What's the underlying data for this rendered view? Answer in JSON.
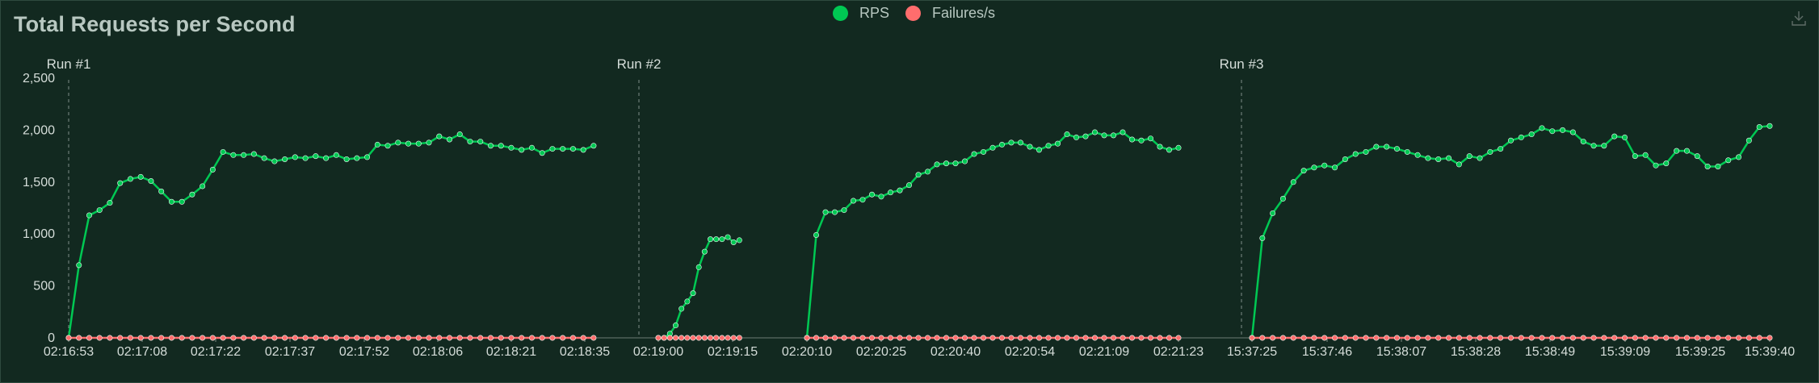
{
  "header": {
    "title": "Total Requests per Second"
  },
  "legend": [
    {
      "name": "RPS",
      "color": "#00c853"
    },
    {
      "name": "Failures/s",
      "color": "#ff6d6d"
    }
  ],
  "icons": {
    "download": "download-icon"
  },
  "colors": {
    "background": "#122920",
    "rps": "#00c853",
    "failures": "#ff6d6d",
    "axis_text": "#d5ddd9",
    "marker_line": "#7f8d87"
  },
  "chart_data": {
    "type": "line",
    "title": "Total Requests per Second",
    "xlabel": "",
    "ylabel": "",
    "ylim": [
      0,
      2500
    ],
    "y_ticks": [
      "0",
      "500",
      "1,000",
      "1,500",
      "2,000",
      "2,500"
    ],
    "x_ticks": [
      "02:16:53",
      "02:17:08",
      "02:17:22",
      "02:17:37",
      "02:17:52",
      "02:18:06",
      "02:18:21",
      "02:18:35",
      "02:19:00",
      "02:19:15",
      "02:20:10",
      "02:20:25",
      "02:20:40",
      "02:20:54",
      "02:21:09",
      "02:21:23",
      "15:37:25",
      "15:37:46",
      "15:38:07",
      "15:38:28",
      "15:38:49",
      "15:39:09",
      "15:39:25",
      "15:39:40"
    ],
    "grid": false,
    "legend_position": "top-center",
    "run_markers": [
      "Run #1",
      "Run #2",
      "Run #3"
    ],
    "series": [
      {
        "name": "RPS",
        "segments": [
          {
            "start": "02:16:53",
            "end": "02:18:38",
            "values": [
              0,
              700,
              1180,
              1230,
              1300,
              1490,
              1530,
              1550,
              1510,
              1410,
              1310,
              1310,
              1380,
              1460,
              1620,
              1790,
              1760,
              1760,
              1770,
              1730,
              1700,
              1720,
              1740,
              1730,
              1750,
              1730,
              1760,
              1720,
              1730,
              1740,
              1860,
              1850,
              1880,
              1870,
              1870,
              1880,
              1940,
              1910,
              1960,
              1890,
              1890,
              1850,
              1850,
              1830,
              1810,
              1830,
              1780,
              1820,
              1820,
              1820,
              1810,
              1850
            ]
          },
          {
            "start": "02:19:00",
            "end": "02:19:20",
            "values": [
              0,
              0,
              40,
              120,
              280,
              350,
              430,
              680,
              830,
              950,
              950,
              950,
              970,
              920,
              940
            ]
          },
          {
            "start": "02:20:10",
            "end": "02:21:28",
            "values": [
              0,
              990,
              1210,
              1210,
              1230,
              1320,
              1330,
              1380,
              1360,
              1400,
              1420,
              1470,
              1570,
              1600,
              1670,
              1680,
              1680,
              1700,
              1770,
              1790,
              1830,
              1860,
              1880,
              1880,
              1840,
              1810,
              1850,
              1870,
              1960,
              1930,
              1940,
              1980,
              1950,
              1950,
              1980,
              1910,
              1900,
              1920,
              1840,
              1810,
              1830
            ]
          },
          {
            "start": "15:37:25",
            "end": "15:39:40",
            "values": [
              0,
              960,
              1200,
              1340,
              1500,
              1610,
              1640,
              1660,
              1640,
              1720,
              1770,
              1790,
              1840,
              1840,
              1820,
              1790,
              1760,
              1730,
              1720,
              1730,
              1670,
              1750,
              1730,
              1790,
              1820,
              1900,
              1930,
              1960,
              2020,
              1990,
              2000,
              1980,
              1890,
              1850,
              1850,
              1940,
              1930,
              1750,
              1760,
              1660,
              1680,
              1800,
              1800,
              1750,
              1650,
              1650,
              1710,
              1740,
              1900,
              2030,
              2040
            ]
          }
        ]
      },
      {
        "name": "Failures/s",
        "segments": [
          {
            "start": "02:16:53",
            "end": "02:18:38",
            "values": [
              0,
              0,
              0,
              0,
              0,
              0,
              0,
              0,
              0,
              0,
              0,
              0,
              0,
              0,
              0,
              0,
              0,
              0,
              0,
              0,
              0,
              0,
              0,
              0,
              0,
              0,
              0,
              0,
              0,
              0,
              0,
              0,
              0,
              0,
              0,
              0,
              0,
              0,
              0,
              0,
              0,
              0,
              0,
              0,
              0,
              0,
              0,
              0,
              0,
              0,
              0,
              0
            ]
          },
          {
            "start": "02:19:00",
            "end": "02:19:20",
            "values": [
              0,
              0,
              0,
              0,
              0,
              0,
              0,
              0,
              0,
              0,
              0,
              0,
              0,
              0,
              0
            ]
          },
          {
            "start": "02:20:10",
            "end": "02:21:28",
            "values": [
              0,
              0,
              0,
              0,
              0,
              0,
              0,
              0,
              0,
              0,
              0,
              0,
              0,
              0,
              0,
              0,
              0,
              0,
              0,
              0,
              0,
              0,
              0,
              0,
              0,
              0,
              0,
              0,
              0,
              0,
              0,
              0,
              0,
              0,
              0,
              0,
              0,
              0,
              0,
              0,
              0
            ]
          },
          {
            "start": "15:37:25",
            "end": "15:39:40",
            "values": [
              0,
              0,
              0,
              0,
              0,
              0,
              0,
              0,
              0,
              0,
              0,
              0,
              0,
              0,
              0,
              0,
              0,
              0,
              0,
              0,
              0,
              0,
              0,
              0,
              0,
              0,
              0,
              0,
              0,
              0,
              0,
              0,
              0,
              0,
              0,
              0,
              0,
              0,
              0,
              0,
              0,
              0,
              0,
              0,
              0,
              0,
              0,
              0,
              0,
              0,
              0
            ]
          }
        ]
      }
    ]
  }
}
